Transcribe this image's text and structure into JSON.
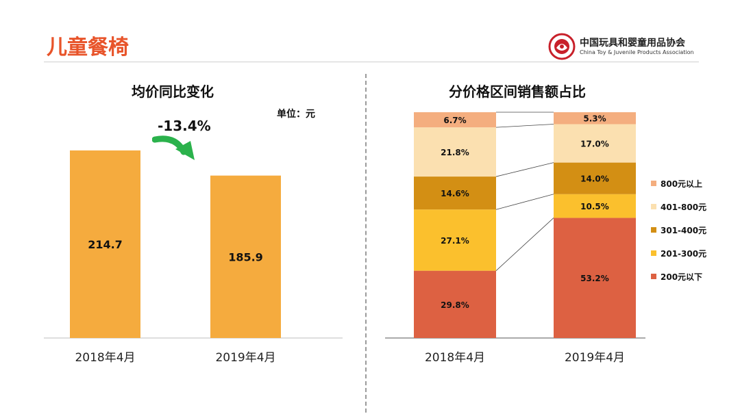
{
  "header": {
    "title": "儿童餐椅",
    "logo_cn": "中国玩具和婴童用品协会",
    "logo_en": "China Toy & Juvenile Products Association"
  },
  "left_chart": {
    "title": "均价同比变化",
    "unit_label": "单位：元",
    "change_label": "-13.4%"
  },
  "right_chart": {
    "title": "分价格区间销售额占比"
  },
  "colors": {
    "accent": "#e8542a",
    "bar": "#f5ab3e",
    "arrow": "#2bb24c",
    "seg_800_plus": "#f4ae7f",
    "seg_401_800": "#fbe0b0",
    "seg_301_400": "#d38f14",
    "seg_201_300": "#fbc02d",
    "seg_under_200": "#dd6142"
  },
  "chart_data": [
    {
      "type": "bar",
      "title": "均价同比变化",
      "unit": "单位：元",
      "categories": [
        "2018年4月",
        "2019年4月"
      ],
      "values": [
        214.7,
        185.9
      ],
      "data_labels": [
        "214.7",
        "185.9"
      ],
      "annotation": "-13.4%",
      "ylim": [
        0,
        260
      ],
      "grid": false
    },
    {
      "type": "bar",
      "stacked": true,
      "title": "分价格区间销售额占比",
      "categories": [
        "2018年4月",
        "2019年4月"
      ],
      "legend_position": "right",
      "series": [
        {
          "name": "200元以下",
          "values": [
            29.8,
            53.2
          ],
          "labels": [
            "29.8%",
            "53.2%"
          ],
          "color": "#dd6142"
        },
        {
          "name": "201-300元",
          "values": [
            27.1,
            10.5
          ],
          "labels": [
            "27.1%",
            "10.5%"
          ],
          "color": "#fbc02d"
        },
        {
          "name": "301-400元",
          "values": [
            14.6,
            14.0
          ],
          "labels": [
            "14.6%",
            "14.0%"
          ],
          "color": "#d38f14"
        },
        {
          "name": "401-800元",
          "values": [
            21.8,
            17.0
          ],
          "labels": [
            "21.8%",
            "17.0%"
          ],
          "color": "#fbe0b0"
        },
        {
          "name": "800元以上",
          "values": [
            6.7,
            5.3
          ],
          "labels": [
            "6.7%",
            "5.3%"
          ],
          "color": "#f4ae7f"
        }
      ],
      "legend_order": [
        "800元以上",
        "401-800元",
        "301-400元",
        "201-300元",
        "200元以下"
      ],
      "ylim": [
        0,
        100
      ],
      "grid": false
    }
  ]
}
